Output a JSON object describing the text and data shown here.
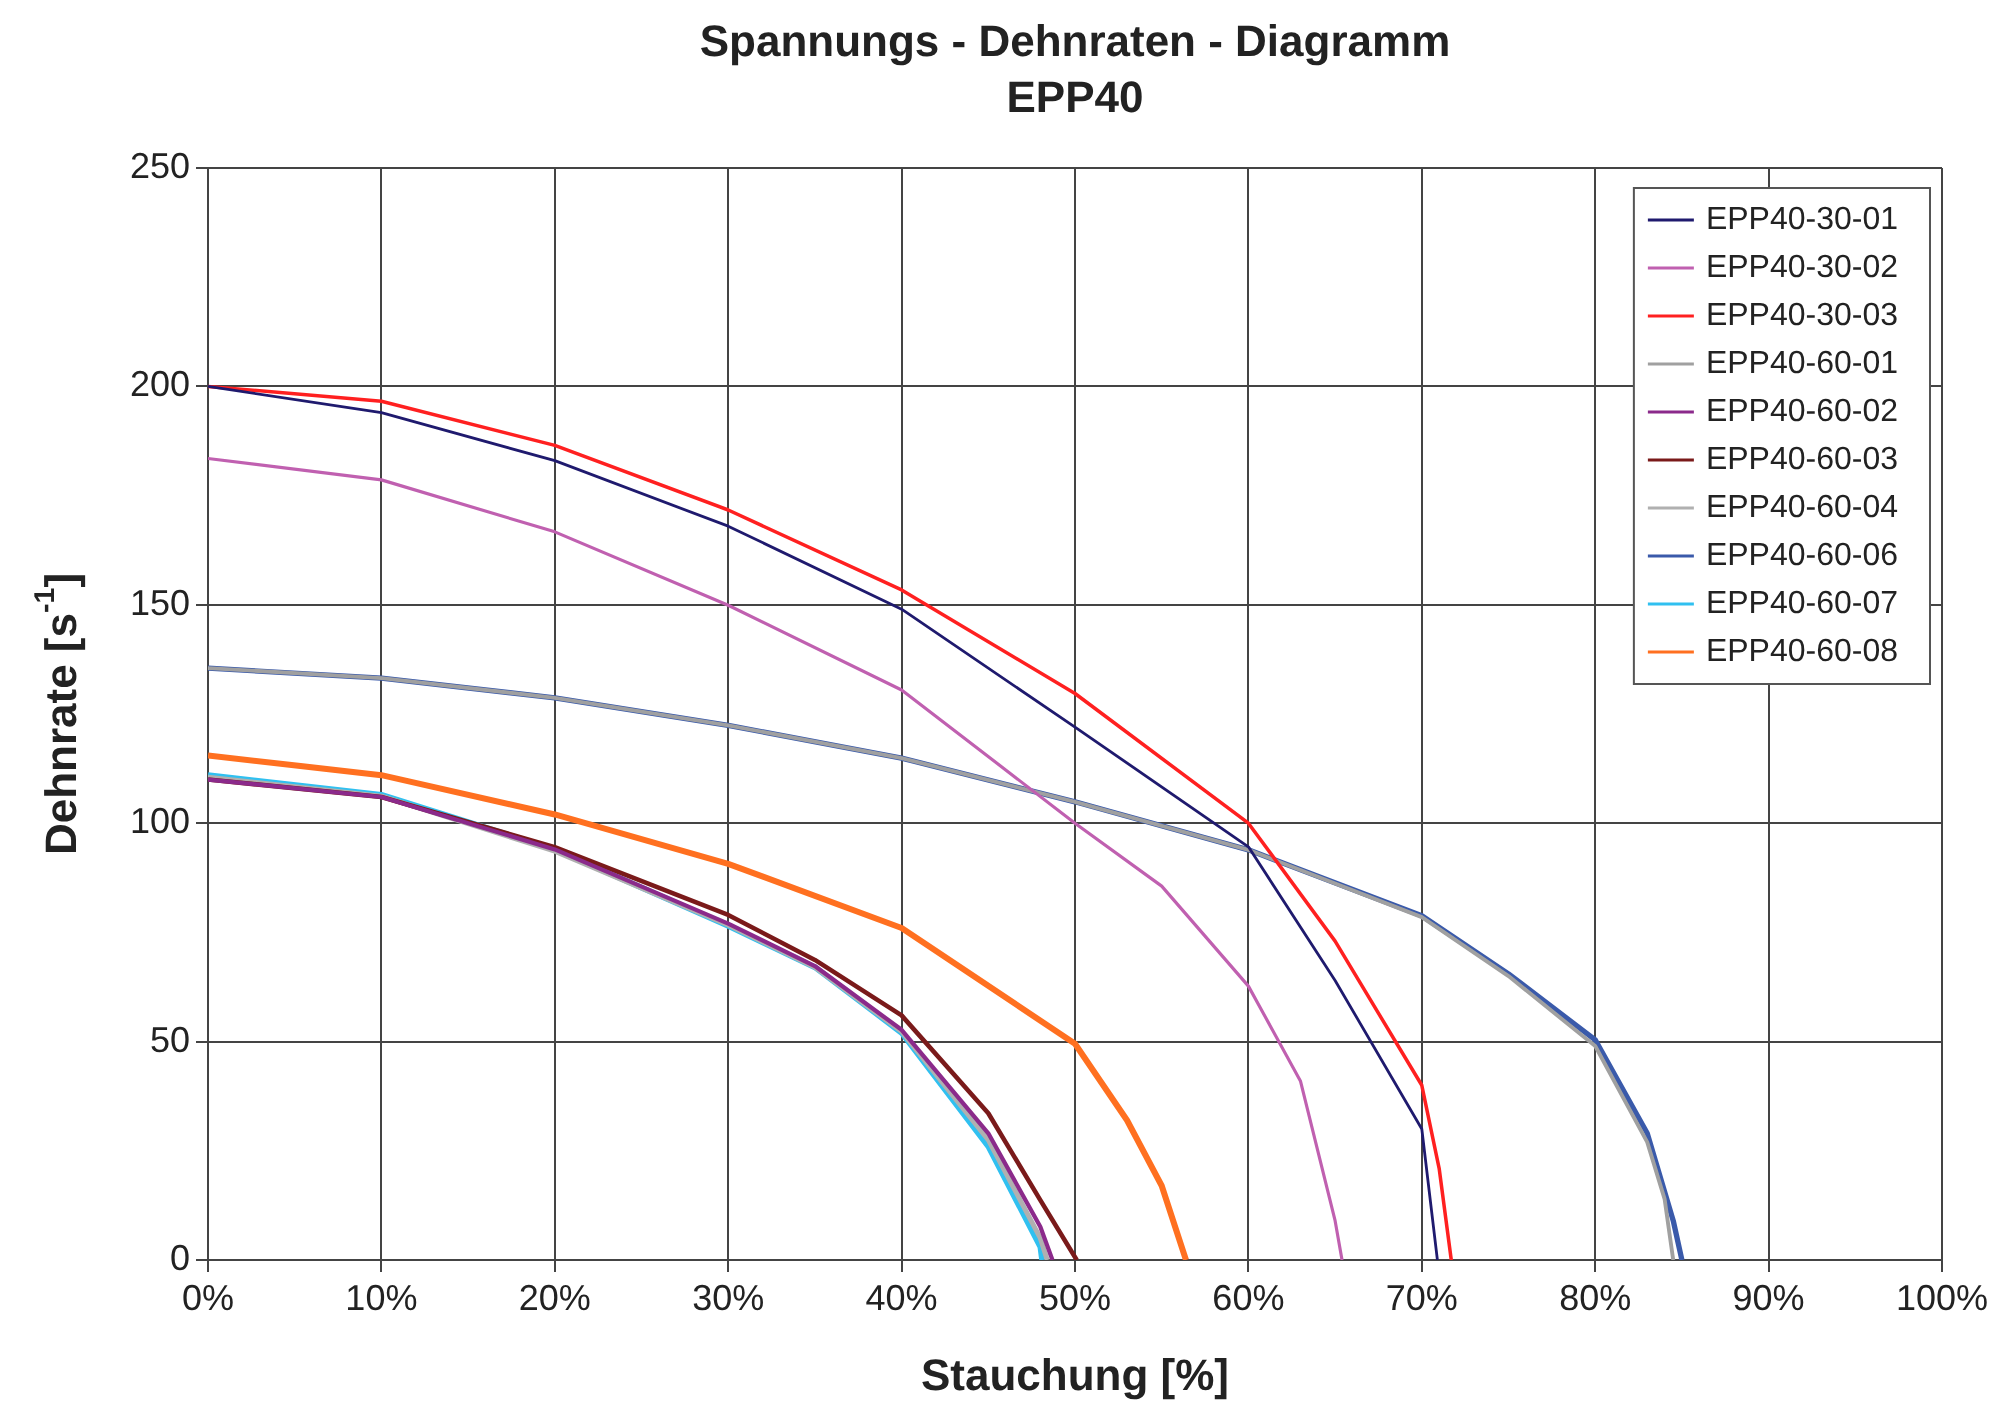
{
  "chart_data": {
    "type": "line",
    "title": "Spannungs - Dehnraten - Diagramm",
    "subtitle": "EPP40",
    "xlabel": "Stauchung [%]",
    "ylabel": "Dehnrate [s$^{-1}$]",
    "xlim": [
      0,
      100
    ],
    "xticks": [
      {
        "value": 0,
        "label": "0%"
      },
      {
        "value": 10,
        "label": "10%"
      },
      {
        "value": 20,
        "label": "20%"
      },
      {
        "value": 30,
        "label": "30%"
      },
      {
        "value": 40,
        "label": "40%"
      },
      {
        "value": 50,
        "label": "50%"
      },
      {
        "value": 60,
        "label": "60%"
      },
      {
        "value": 70,
        "label": "70%"
      },
      {
        "value": 80,
        "label": "80%"
      },
      {
        "value": 90,
        "label": "90%"
      },
      {
        "value": 100,
        "label": "100%"
      }
    ],
    "ylim": [
      0,
      250
    ],
    "yticks": [
      0,
      50,
      100,
      150,
      200,
      250
    ],
    "grid": true,
    "legend": "top right",
    "marker": "none",
    "line_style": "solid",
    "series": [
      {
        "name": "EPP40-30-01",
        "color": "#1f1a6e",
        "x": [
          0,
          10,
          20,
          30,
          40,
          50,
          60,
          65,
          70,
          70.9
        ],
        "values": [
          200,
          194,
          183,
          168,
          149,
          122,
          94.6,
          64,
          30,
          0
        ]
      },
      {
        "name": "EPP40-30-02",
        "color": "#c060b0",
        "x": [
          0,
          10,
          20,
          30,
          40,
          50,
          55,
          60,
          63,
          65,
          65.4
        ],
        "values": [
          183.5,
          178.6,
          166.7,
          149.9,
          130.5,
          100,
          85.6,
          62.7,
          41,
          9,
          0
        ]
      },
      {
        "name": "EPP40-30-03",
        "color": "#ff2020",
        "x": [
          0,
          10,
          20,
          30,
          40,
          50,
          60,
          65,
          70,
          71,
          71.7
        ],
        "values": [
          200,
          196.6,
          186.5,
          171.7,
          153.4,
          129.7,
          100,
          73,
          40,
          21,
          0
        ]
      },
      {
        "name": "EPP40-60-01",
        "color": "#a0a0a0",
        "x": [
          0,
          10,
          20,
          30,
          40,
          50,
          60,
          70,
          75,
          80,
          83,
          84,
          84.5
        ],
        "values": [
          135.5,
          133.2,
          128.7,
          122.4,
          114.9,
          104.9,
          93.9,
          78.5,
          65,
          49,
          27,
          14,
          0
        ]
      },
      {
        "name": "EPP40-60-02",
        "color": "#8b2a8b",
        "x": [
          0,
          10,
          20,
          30,
          35,
          40,
          45,
          48,
          48.7
        ],
        "values": [
          110,
          106,
          94,
          77,
          67.3,
          52.7,
          29,
          7.6,
          0
        ]
      },
      {
        "name": "EPP40-60-03",
        "color": "#7a1a1a",
        "x": [
          0,
          10,
          20,
          30,
          35,
          40,
          45,
          48,
          50.1
        ],
        "values": [
          110,
          106,
          94.5,
          79,
          68.7,
          56,
          33.6,
          13.7,
          0
        ]
      },
      {
        "name": "EPP40-60-04",
        "color": "#b0b0b0",
        "x": [
          0,
          10,
          20,
          30,
          35,
          40,
          45,
          48,
          48.4
        ],
        "values": [
          110.5,
          106.2,
          93.6,
          76.7,
          67,
          52.3,
          27.5,
          5,
          0
        ]
      },
      {
        "name": "EPP40-60-06",
        "color": "#3a5aaa",
        "x": [
          0,
          10,
          20,
          30,
          40,
          50,
          60,
          70,
          75,
          80,
          83,
          84.5,
          85
        ],
        "values": [
          135.5,
          133.2,
          128.7,
          122.4,
          114.9,
          104.9,
          93.9,
          78.8,
          65.5,
          50.4,
          29,
          9,
          0
        ]
      },
      {
        "name": "EPP40-60-07",
        "color": "#30c0f0",
        "x": [
          0,
          10,
          20,
          30,
          35,
          40,
          45,
          48,
          48.1
        ],
        "values": [
          111,
          106.5,
          94,
          76.5,
          67,
          52,
          26,
          3,
          0
        ]
      },
      {
        "name": "EPP40-60-08",
        "color": "#ff7020",
        "x": [
          0,
          10,
          20,
          30,
          40,
          50,
          53,
          55,
          56.4
        ],
        "values": [
          115.5,
          111,
          102,
          90.7,
          76,
          49.5,
          32,
          17,
          0
        ]
      }
    ]
  }
}
